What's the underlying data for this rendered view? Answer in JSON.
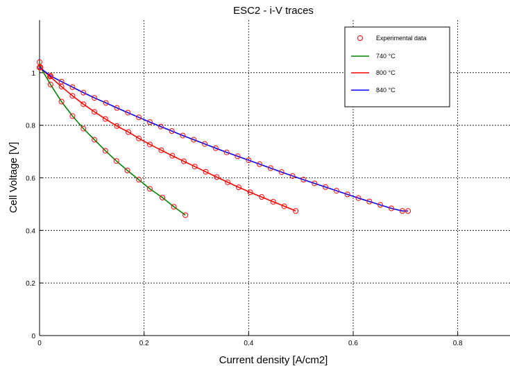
{
  "chart_data": {
    "type": "line",
    "title": "ESC2 - i-V traces",
    "xlabel": "Current density [A/cm2]",
    "ylabel": "Cell Voltage [V]",
    "xlim": [
      0,
      0.9
    ],
    "ylim": [
      0,
      1.2
    ],
    "xticks": [
      0,
      0.2,
      0.4,
      0.6,
      0.8
    ],
    "yticks": [
      0,
      0.2,
      0.4,
      0.6,
      0.8,
      1
    ],
    "xtick_labels": [
      "0",
      "0.2",
      "0.4",
      "0.6",
      "0.8"
    ],
    "ytick_labels": [
      "0",
      "0.2",
      "0.4",
      "0.6",
      "0.8",
      "1"
    ],
    "grid": true,
    "legend_position": "top-right",
    "marker_legend_label": "Experimental data",
    "series": [
      {
        "name": "740 °C",
        "color": "#008000",
        "x": [
          0.0,
          0.002,
          0.021,
          0.042,
          0.063,
          0.084,
          0.105,
          0.126,
          0.147,
          0.168,
          0.19,
          0.211,
          0.235,
          0.257,
          0.279
        ],
        "y": [
          1.04,
          1.02,
          0.955,
          0.89,
          0.835,
          0.787,
          0.745,
          0.703,
          0.664,
          0.628,
          0.593,
          0.558,
          0.525,
          0.49,
          0.458
        ]
      },
      {
        "name": "800 °C",
        "color": "#ff0000",
        "x": [
          0.0,
          0.02,
          0.042,
          0.063,
          0.084,
          0.105,
          0.126,
          0.148,
          0.17,
          0.19,
          0.211,
          0.233,
          0.254,
          0.276,
          0.297,
          0.318,
          0.339,
          0.36,
          0.381,
          0.403,
          0.425,
          0.447,
          0.468,
          0.49
        ],
        "y": [
          1.02,
          0.985,
          0.947,
          0.912,
          0.88,
          0.851,
          0.824,
          0.797,
          0.774,
          0.75,
          0.727,
          0.705,
          0.684,
          0.663,
          0.643,
          0.623,
          0.603,
          0.583,
          0.564,
          0.545,
          0.527,
          0.509,
          0.492,
          0.474
        ]
      },
      {
        "name": "840 °C",
        "color": "#0000ff",
        "x": [
          0.0,
          0.021,
          0.042,
          0.063,
          0.084,
          0.105,
          0.127,
          0.148,
          0.169,
          0.19,
          0.211,
          0.232,
          0.253,
          0.274,
          0.295,
          0.316,
          0.337,
          0.358,
          0.379,
          0.4,
          0.421,
          0.442,
          0.463,
          0.484,
          0.505,
          0.526,
          0.547,
          0.568,
          0.589,
          0.61,
          0.631,
          0.652,
          0.673,
          0.694,
          0.705
        ],
        "y": [
          1.02,
          0.988,
          0.966,
          0.945,
          0.924,
          0.904,
          0.885,
          0.866,
          0.848,
          0.83,
          0.812,
          0.795,
          0.778,
          0.761,
          0.745,
          0.729,
          0.713,
          0.697,
          0.682,
          0.667,
          0.652,
          0.637,
          0.622,
          0.607,
          0.593,
          0.579,
          0.565,
          0.551,
          0.537,
          0.523,
          0.51,
          0.497,
          0.484,
          0.474,
          0.474
        ]
      }
    ]
  }
}
